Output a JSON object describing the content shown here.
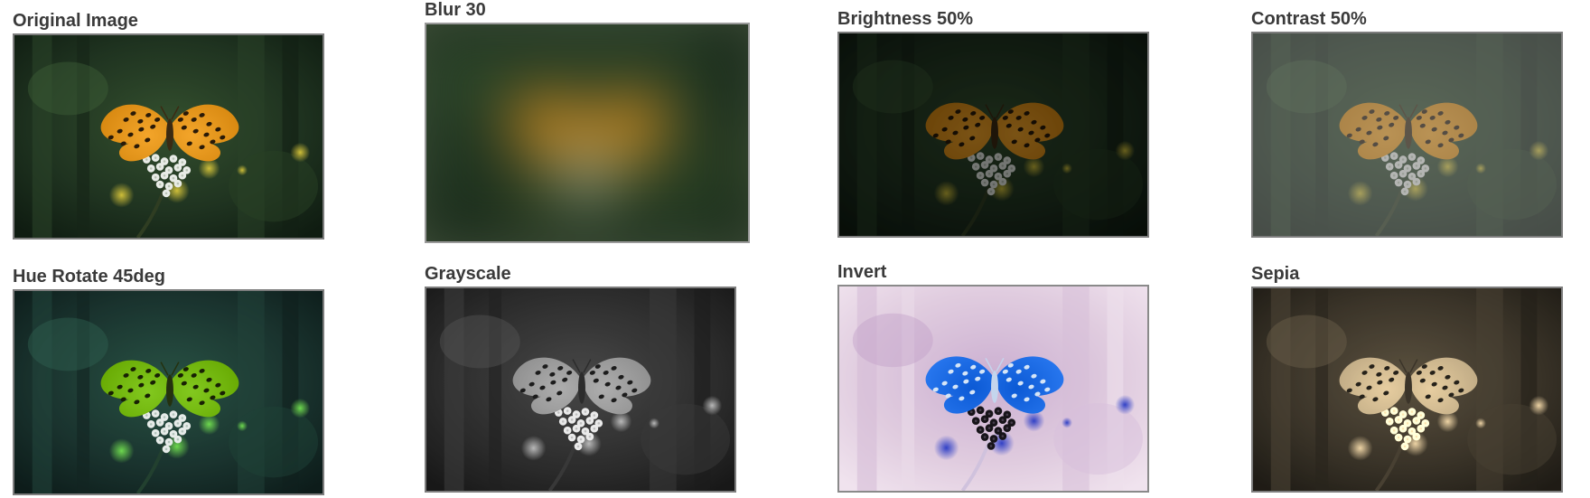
{
  "panels": [
    {
      "label": "Original Image",
      "filter": "none"
    },
    {
      "label": "Blur 30",
      "filter": "blur"
    },
    {
      "label": "Brightness 50%",
      "filter": "brightness"
    },
    {
      "label": "Contrast 50%",
      "filter": "contrast"
    },
    {
      "label": "Hue Rotate 45deg",
      "filter": "hue-rotate"
    },
    {
      "label": "Grayscale",
      "filter": "grayscale"
    },
    {
      "label": "Invert",
      "filter": "invert"
    },
    {
      "label": "Sepia",
      "filter": "sepia"
    }
  ],
  "photo": {
    "subject": "orange butterfly on white flower, dark green background",
    "colors": {
      "background": "#1f3320",
      "butterfly": "#d98a12",
      "spots": "#2a1a08",
      "flower": "#e8ebe6",
      "bokeh": "#d7c53a"
    }
  }
}
